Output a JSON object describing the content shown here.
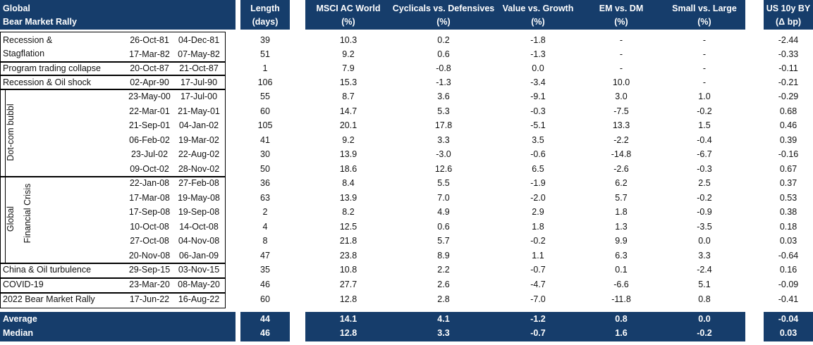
{
  "header": {
    "title_line1": "Global",
    "title_line2": "Bear Market Rally",
    "length_line1": "Length",
    "length_line2": "(days)",
    "cols": [
      {
        "line1": "MSCI AC World",
        "line2": "(%)"
      },
      {
        "line1": "Cyclicals vs. Defensives",
        "line2": "(%)"
      },
      {
        "line1": "Value vs. Growth",
        "line2": "(%)"
      },
      {
        "line1": "EM vs. DM",
        "line2": "(%)"
      },
      {
        "line1": "Small vs. Large",
        "line2": "(%)"
      }
    ],
    "bond_line1": "US 10y BY",
    "bond_line2": "(Δ bp)"
  },
  "groups": {
    "recession_stagflation_1": "Recession &",
    "recession_stagflation_2": "Stagflation",
    "dotcom": "Dot-com bubbl",
    "gfc_1": "Global",
    "gfc_2": "Financial Crisis"
  },
  "rows": [
    {
      "label": "",
      "start": "26-Oct-81",
      "end": "04-Dec-81",
      "length": "39",
      "acwi": "10.3",
      "cyc": "0.2",
      "val": "-1.8",
      "em": "-",
      "small": "-",
      "bond": "-2.44"
    },
    {
      "label": "",
      "start": "17-Mar-82",
      "end": "07-May-82",
      "length": "51",
      "acwi": "9.2",
      "cyc": "0.6",
      "val": "-1.3",
      "em": "-",
      "small": "-",
      "bond": "-0.33"
    },
    {
      "label": "Program trading collapse",
      "start": "20-Oct-87",
      "end": "21-Oct-87",
      "length": "1",
      "acwi": "7.9",
      "cyc": "-0.8",
      "val": "0.0",
      "em": "-",
      "small": "-",
      "bond": "-0.11"
    },
    {
      "label": "Recession & Oil shock",
      "start": "02-Apr-90",
      "end": "17-Jul-90",
      "length": "106",
      "acwi": "15.3",
      "cyc": "-1.3",
      "val": "-3.4",
      "em": "10.0",
      "small": "-",
      "bond": "-0.21"
    },
    {
      "label": "",
      "start": "23-May-00",
      "end": "17-Jul-00",
      "length": "55",
      "acwi": "8.7",
      "cyc": "3.6",
      "val": "-9.1",
      "em": "3.0",
      "small": "1.0",
      "bond": "-0.29"
    },
    {
      "label": "",
      "start": "22-Mar-01",
      "end": "21-May-01",
      "length": "60",
      "acwi": "14.7",
      "cyc": "5.3",
      "val": "-0.3",
      "em": "-7.5",
      "small": "-0.2",
      "bond": "0.68"
    },
    {
      "label": "",
      "start": "21-Sep-01",
      "end": "04-Jan-02",
      "length": "105",
      "acwi": "20.1",
      "cyc": "17.8",
      "val": "-5.1",
      "em": "13.3",
      "small": "1.5",
      "bond": "0.46"
    },
    {
      "label": "",
      "start": "06-Feb-02",
      "end": "19-Mar-02",
      "length": "41",
      "acwi": "9.2",
      "cyc": "3.3",
      "val": "3.5",
      "em": "-2.2",
      "small": "-0.4",
      "bond": "0.39"
    },
    {
      "label": "",
      "start": "23-Jul-02",
      "end": "22-Aug-02",
      "length": "30",
      "acwi": "13.9",
      "cyc": "-3.0",
      "val": "-0.6",
      "em": "-14.8",
      "small": "-6.7",
      "bond": "-0.16"
    },
    {
      "label": "",
      "start": "09-Oct-02",
      "end": "28-Nov-02",
      "length": "50",
      "acwi": "18.6",
      "cyc": "12.6",
      "val": "6.5",
      "em": "-2.6",
      "small": "-0.3",
      "bond": "0.67"
    },
    {
      "label": "",
      "start": "22-Jan-08",
      "end": "27-Feb-08",
      "length": "36",
      "acwi": "8.4",
      "cyc": "5.5",
      "val": "-1.9",
      "em": "6.2",
      "small": "2.5",
      "bond": "0.37"
    },
    {
      "label": "",
      "start": "17-Mar-08",
      "end": "19-May-08",
      "length": "63",
      "acwi": "13.9",
      "cyc": "7.0",
      "val": "-2.0",
      "em": "5.7",
      "small": "-0.2",
      "bond": "0.53"
    },
    {
      "label": "",
      "start": "17-Sep-08",
      "end": "19-Sep-08",
      "length": "2",
      "acwi": "8.2",
      "cyc": "4.9",
      "val": "2.9",
      "em": "1.8",
      "small": "-0.9",
      "bond": "0.38"
    },
    {
      "label": "",
      "start": "10-Oct-08",
      "end": "14-Oct-08",
      "length": "4",
      "acwi": "12.5",
      "cyc": "0.6",
      "val": "1.8",
      "em": "1.3",
      "small": "-3.5",
      "bond": "0.18"
    },
    {
      "label": "",
      "start": "27-Oct-08",
      "end": "04-Nov-08",
      "length": "8",
      "acwi": "21.8",
      "cyc": "5.7",
      "val": "-0.2",
      "em": "9.9",
      "small": "0.0",
      "bond": "0.03"
    },
    {
      "label": "",
      "start": "20-Nov-08",
      "end": "06-Jan-09",
      "length": "47",
      "acwi": "23.8",
      "cyc": "8.9",
      "val": "1.1",
      "em": "6.3",
      "small": "3.3",
      "bond": "-0.64"
    },
    {
      "label": "China & Oil turbulence",
      "start": "29-Sep-15",
      "end": "03-Nov-15",
      "length": "35",
      "acwi": "10.8",
      "cyc": "2.2",
      "val": "-0.7",
      "em": "0.1",
      "small": "-2.4",
      "bond": "0.16"
    },
    {
      "label": "COVID-19",
      "start": "23-Mar-20",
      "end": "08-May-20",
      "length": "46",
      "acwi": "27.7",
      "cyc": "2.6",
      "val": "-4.7",
      "em": "-6.6",
      "small": "5.1",
      "bond": "-0.09"
    },
    {
      "label": "2022 Bear Market Rally",
      "start": "17-Jun-22",
      "end": "16-Aug-22",
      "length": "60",
      "acwi": "12.8",
      "cyc": "2.8",
      "val": "-7.0",
      "em": "-11.8",
      "small": "0.8",
      "bond": "-0.41"
    }
  ],
  "summary": [
    {
      "label": "Average",
      "length": "44",
      "acwi": "14.1",
      "cyc": "4.1",
      "val": "-1.2",
      "em": "0.8",
      "small": "0.0",
      "bond": "-0.04"
    },
    {
      "label": "Median",
      "length": "46",
      "acwi": "12.8",
      "cyc": "3.3",
      "val": "-0.7",
      "em": "1.6",
      "small": "-0.2",
      "bond": "0.03"
    }
  ],
  "colors": {
    "header_bg": "#163d6b",
    "header_text": "#ffffff"
  }
}
